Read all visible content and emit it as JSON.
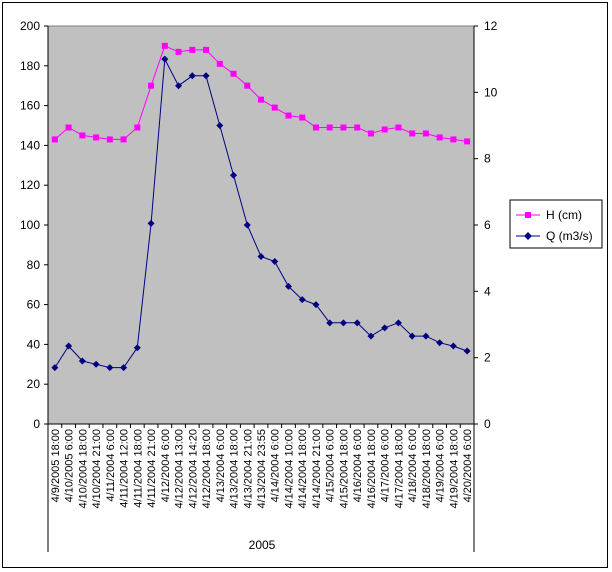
{
  "chart_data": {
    "type": "line",
    "title": "",
    "xlabel": "",
    "ylabel": "",
    "categories": [
      "4/9/2005 18:00",
      "4/10/2005 6:00",
      "4/10/2004 18:00",
      "4/10/2004 21:00",
      "4/11/2004 6:00",
      "4/11/2004 12:00",
      "4/11/2004 18:00",
      "4/11/2004 21:00",
      "4/12/2004 6:00",
      "4/12/2004 13:00",
      "4/12/2004 14:20",
      "4/12/2004 18:00",
      "4/13/2004 6:00",
      "4/13/2004 18:00",
      "4/13/2004 21:00",
      "4/13/2004 23:55",
      "4/14/2004 6:00",
      "4/14/2004 10:00",
      "4/14/2004 18:00",
      "4/14/2004 21:00",
      "4/15/2004 6:00",
      "4/15/2004 18:00",
      "4/16/2004 6:00",
      "4/16/2004 18:00",
      "4/17/2004 6:00",
      "4/17/2004 18:00",
      "4/18/2004 6:00",
      "4/18/2004 18:00",
      "4/19/2004 6:00",
      "4/19/2004 18:00",
      "4/20/2004 6:00"
    ],
    "group_label": "2005",
    "y_left": {
      "min": 0,
      "max": 200,
      "step": 20
    },
    "y_right": {
      "min": 0,
      "max": 12,
      "step": 2
    },
    "series": [
      {
        "name": "H (cm)",
        "axis": "left",
        "color": "#FF00FF",
        "marker": "square",
        "values": [
          143,
          149,
          145,
          144,
          143,
          143,
          149,
          170,
          190,
          187,
          188,
          188,
          181,
          176,
          170,
          163,
          159,
          155,
          154,
          149,
          149,
          149,
          149,
          146,
          148,
          149,
          146,
          146,
          144,
          143,
          142
        ]
      },
      {
        "name": "Q (m3/s)",
        "axis": "right",
        "color": "#000080",
        "marker": "diamond",
        "values": [
          1.7,
          2.35,
          1.9,
          1.8,
          1.7,
          1.7,
          2.3,
          6.05,
          11.0,
          10.2,
          10.5,
          10.5,
          9.0,
          7.5,
          6.0,
          5.05,
          4.9,
          4.15,
          3.75,
          3.6,
          3.05,
          3.05,
          3.05,
          2.65,
          2.9,
          3.05,
          2.65,
          2.65,
          2.45,
          2.35,
          2.2
        ]
      }
    ],
    "legend_position": "right",
    "grid": false,
    "plot_background": "#C0C0C0"
  }
}
